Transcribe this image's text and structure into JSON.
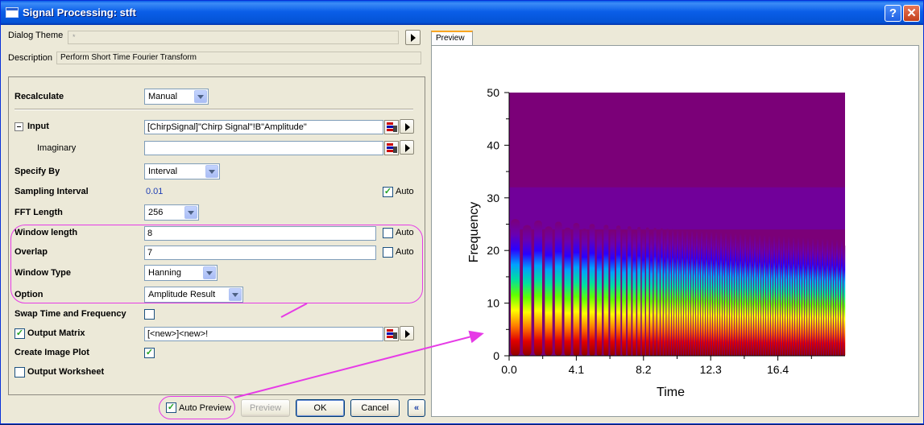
{
  "window": {
    "title": "Signal Processing: stft",
    "help_label": "?",
    "close_label": "✕"
  },
  "dialog_theme": {
    "label": "Dialog Theme",
    "value": "*"
  },
  "description": {
    "label": "Description",
    "value": "Perform Short Time Fourier Transform"
  },
  "form": {
    "recalculate": {
      "label": "Recalculate",
      "value": "Manual"
    },
    "input": {
      "label": "Input",
      "value": "[ChirpSignal]\"Chirp Signal\"!B\"Amplitude\""
    },
    "imaginary": {
      "label": "Imaginary",
      "value": ""
    },
    "specify_by": {
      "label": "Specify By",
      "value": "Interval"
    },
    "sampling_interval": {
      "label": "Sampling Interval",
      "value": "0.01",
      "auto_label": "Auto",
      "auto_checked": true
    },
    "fft_length": {
      "label": "FFT Length",
      "value": "256"
    },
    "window_length": {
      "label": "Window length",
      "value": "8",
      "auto_label": "Auto",
      "auto_checked": false
    },
    "overlap": {
      "label": "Overlap",
      "value": "7",
      "auto_label": "Auto",
      "auto_checked": false
    },
    "window_type": {
      "label": "Window Type",
      "value": "Hanning"
    },
    "option": {
      "label": "Option",
      "value": "Amplitude Result"
    },
    "swap": {
      "label": "Swap Time and Frequency",
      "checked": false
    },
    "output_matrix": {
      "label": "Output Matrix",
      "checked": true,
      "value": "[<new>]<new>!"
    },
    "create_image_plot": {
      "label": "Create Image Plot",
      "checked": true
    },
    "output_worksheet": {
      "label": "Output Worksheet",
      "checked": false
    }
  },
  "buttons": {
    "auto_preview": "Auto Preview",
    "auto_preview_checked": true,
    "preview": "Preview",
    "ok": "OK",
    "cancel": "Cancel",
    "collapse": "«"
  },
  "preview_tab": "Preview",
  "chart_data": {
    "type": "heatmap",
    "xlabel": "Time",
    "ylabel": "Frequency",
    "x_ticks": [
      "0.0",
      "4.1",
      "8.2",
      "12.3",
      "16.4"
    ],
    "x_tick_values": [
      0.0,
      4.1,
      8.2,
      12.3,
      16.4
    ],
    "y_ticks": [
      "0",
      "10",
      "20",
      "30",
      "40",
      "50"
    ],
    "y_tick_values": [
      0,
      10,
      20,
      30,
      40,
      50
    ],
    "xlim": [
      0,
      20.5
    ],
    "ylim": [
      0,
      50
    ],
    "colormap": [
      "#7b0078",
      "#6a00b0",
      "#2a00ff",
      "#00a0ff",
      "#00e0a0",
      "#60ff00",
      "#ffff00",
      "#ff8000",
      "#e00000",
      "#900000"
    ],
    "grid": false,
    "legend": "none"
  },
  "colors": {
    "accent": "#e63be6",
    "title_bar": "#0a5ee8"
  }
}
